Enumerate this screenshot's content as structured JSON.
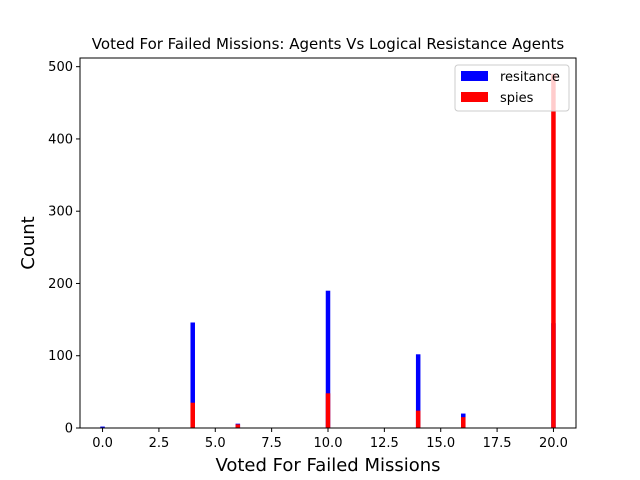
{
  "chart_data": {
    "type": "bar",
    "title": "Voted For Failed Missions: Agents Vs Logical Resistance Agents",
    "xlabel": "Voted For Failed Missions",
    "ylabel": "Count",
    "xlim": [
      -1,
      21
    ],
    "ylim": [
      0,
      512
    ],
    "xticks": [
      "0.0",
      "2.5",
      "5.0",
      "7.5",
      "10.0",
      "12.5",
      "15.0",
      "17.5",
      "20.0"
    ],
    "yticks": [
      "0",
      "100",
      "200",
      "300",
      "400",
      "500"
    ],
    "grid": false,
    "legend_position": "top-right",
    "series": [
      {
        "name": "resitance",
        "color": "#0000ff",
        "points": [
          {
            "x": 0,
            "y": 2
          },
          {
            "x": 4,
            "y": 146
          },
          {
            "x": 6,
            "y": 6
          },
          {
            "x": 10,
            "y": 190
          },
          {
            "x": 14,
            "y": 102
          },
          {
            "x": 16,
            "y": 20
          },
          {
            "x": 20,
            "y": 145
          }
        ]
      },
      {
        "name": "spies",
        "color": "#ff0000",
        "points": [
          {
            "x": 4,
            "y": 35
          },
          {
            "x": 6,
            "y": 5
          },
          {
            "x": 10,
            "y": 48
          },
          {
            "x": 14,
            "y": 24
          },
          {
            "x": 16,
            "y": 15
          },
          {
            "x": 20,
            "y": 490
          }
        ]
      }
    ]
  }
}
